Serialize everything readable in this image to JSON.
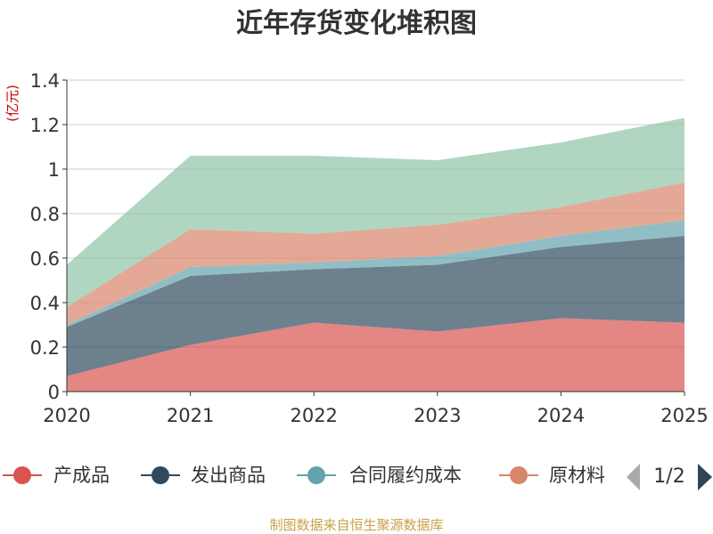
{
  "chart_data": {
    "type": "area",
    "stacked": true,
    "title": "近年存货变化堆积图",
    "unit_label": "(亿元)",
    "x": [
      "2020",
      "2021",
      "2022",
      "2023",
      "2024",
      "2025"
    ],
    "ylim": [
      0,
      1.4
    ],
    "yticks": [
      "0",
      "0.2",
      "0.4",
      "0.6",
      "0.8",
      "1",
      "1.2",
      "1.4"
    ],
    "grid": true,
    "series": [
      {
        "name": "产成品",
        "color": "#d9534f",
        "values": [
          0.07,
          0.21,
          0.31,
          0.27,
          0.33,
          0.31
        ]
      },
      {
        "name": "发出商品",
        "color": "#2e4a5e",
        "values": [
          0.22,
          0.31,
          0.24,
          0.3,
          0.32,
          0.39
        ]
      },
      {
        "name": "合同履约成本",
        "color": "#62a3ad",
        "values": [
          0.01,
          0.04,
          0.03,
          0.04,
          0.05,
          0.07
        ]
      },
      {
        "name": "原材料",
        "color": "#d9856a",
        "values": [
          0.08,
          0.17,
          0.13,
          0.14,
          0.13,
          0.17
        ]
      },
      {
        "name": "",
        "color": "#8ec4a8",
        "values": [
          0.19,
          0.33,
          0.35,
          0.29,
          0.29,
          0.29
        ]
      }
    ],
    "legend": {
      "placement": "bottom",
      "items": [
        "产成品",
        "发出商品",
        "合同履约成本",
        "原材料"
      ],
      "page": "1/2"
    }
  },
  "footer": {
    "source": "制图数据来自恒生聚源数据库"
  },
  "colors": {
    "title": "#333333",
    "axis": "#333333",
    "grid": "#cccccc",
    "unit": "#cc0000",
    "source": "#c8a248",
    "pager_prev": "#aaaaaa",
    "pager_next": "#2f4554"
  }
}
